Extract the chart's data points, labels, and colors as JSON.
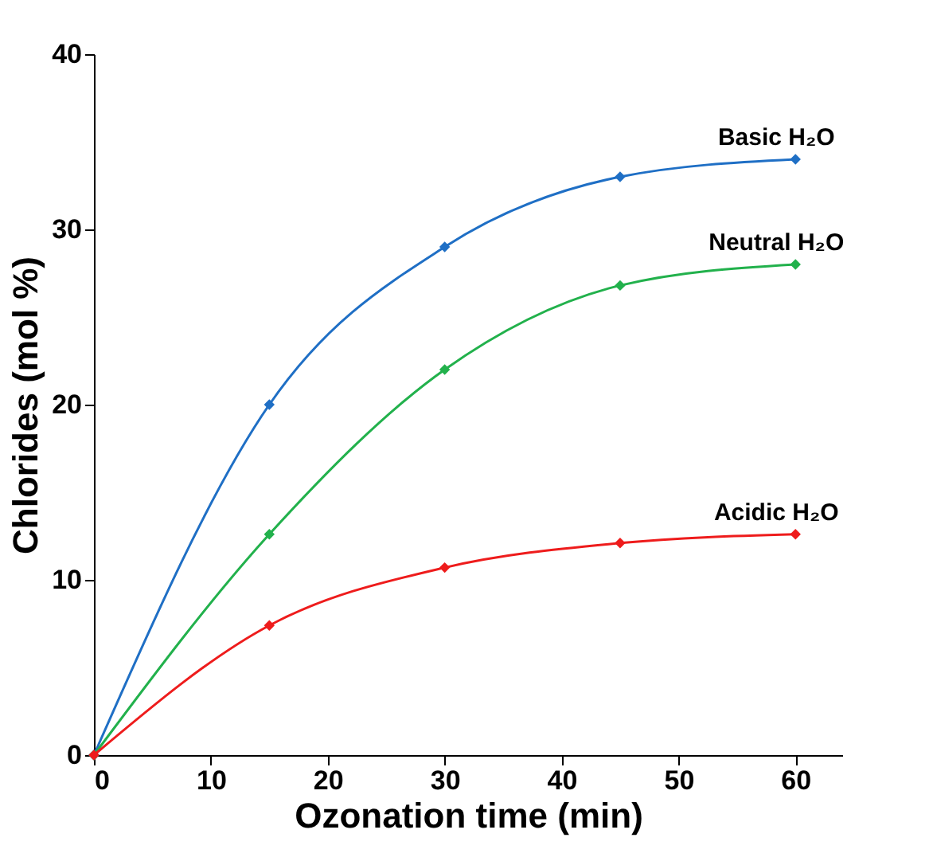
{
  "chart_data": {
    "type": "line",
    "xlabel": "Ozonation time (min)",
    "ylabel": "Chlorides (mol %)",
    "x": [
      0,
      15,
      30,
      45,
      60
    ],
    "series": [
      {
        "name": "Basic H₂O",
        "color": "#1f6fc5",
        "values": [
          0,
          20.0,
          29.0,
          33.0,
          34.0
        ]
      },
      {
        "name": "Neutral H₂O",
        "color": "#22b14c",
        "values": [
          0,
          12.6,
          22.0,
          26.8,
          28.0
        ]
      },
      {
        "name": "Acidic H₂O",
        "color": "#ee1c1c",
        "values": [
          0,
          7.4,
          10.7,
          12.1,
          12.6
        ]
      }
    ],
    "xlim": [
      0,
      64
    ],
    "xticks": [
      0,
      10,
      20,
      30,
      40,
      50,
      60
    ],
    "ylim": [
      0,
      40
    ],
    "yticks": [
      0,
      10,
      20,
      30,
      40
    ],
    "grid": false,
    "marker": "diamond",
    "line_style": "solid"
  }
}
